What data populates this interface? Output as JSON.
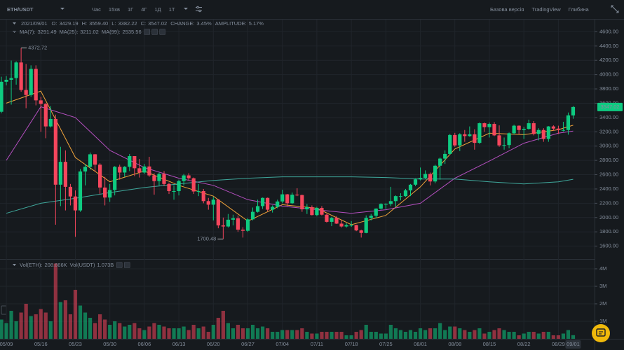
{
  "top_bar": {
    "symbol": "ETH/USDT",
    "intervals": [
      "Час",
      "15хв",
      "1Г",
      "4Г",
      "1Д",
      "1Т"
    ],
    "active_interval": 4,
    "links": [
      "Базова версія",
      "TradingView",
      "Глибина"
    ],
    "active_link": 0
  },
  "chart_data": {
    "type": "candlestick",
    "header": {
      "date": "2021/09/01",
      "items": [
        {
          "label": "O:",
          "value": "3429.19"
        },
        {
          "label": "H:",
          "value": "3559.40"
        },
        {
          "label": "L:",
          "value": "3382.22"
        },
        {
          "label": "C:",
          "value": "3547.02"
        },
        {
          "label": "CHANGE:",
          "value": "3.45%"
        },
        {
          "label": "AMPLITUDE:",
          "value": "5.17%"
        }
      ]
    },
    "categories": [
      null,
      "05/09",
      null,
      null,
      null,
      null,
      null,
      null,
      "05/16",
      null,
      null,
      null,
      null,
      null,
      null,
      "05/23",
      null,
      null,
      null,
      null,
      null,
      null,
      "05/30",
      null,
      null,
      null,
      null,
      null,
      null,
      "06/06",
      null,
      null,
      null,
      null,
      null,
      null,
      "06/13",
      null,
      null,
      null,
      null,
      null,
      null,
      "06/20",
      null,
      null,
      null,
      null,
      null,
      null,
      "06/27",
      null,
      null,
      null,
      null,
      null,
      null,
      "07/04",
      null,
      null,
      null,
      null,
      null,
      null,
      "07/11",
      null,
      null,
      null,
      null,
      null,
      null,
      "07/18",
      null,
      null,
      null,
      null,
      null,
      null,
      "07/25",
      null,
      null,
      null,
      null,
      null,
      null,
      "08/01",
      null,
      null,
      null,
      null,
      null,
      null,
      "08/08",
      null,
      null,
      null,
      null,
      null,
      null,
      "08/15",
      null,
      null,
      null,
      null,
      null,
      null,
      "08/22",
      null,
      null,
      null,
      null,
      null,
      null,
      "08/29",
      null,
      null,
      "09/01"
    ],
    "open": [
      3480,
      3900,
      3928,
      3952,
      4170,
      3785,
      3715,
      4080,
      3640,
      3590,
      3275,
      3380,
      2460,
      2780,
      2430,
      2295,
      2100,
      2645,
      2710,
      2885,
      2740,
      2420,
      2280,
      2385,
      2710,
      2630,
      2710,
      2860,
      2690,
      2630,
      2715,
      2590,
      2510,
      2610,
      2470,
      2370,
      2370,
      2510,
      2590,
      2550,
      2365,
      2370,
      2230,
      2180,
      2250,
      1890,
      1875,
      1970,
      1990,
      1830,
      1815,
      1975,
      2080,
      2160,
      2275,
      2110,
      2150,
      2225,
      2325,
      2200,
      2320,
      2315,
      2115,
      2145,
      2035,
      2135,
      2040,
      1940,
      1995,
      1915,
      1875,
      1895,
      1895,
      1820,
      1785,
      1995,
      2025,
      2125,
      2190,
      2190,
      2230,
      2300,
      2300,
      2380,
      2460,
      2535,
      2555,
      2610,
      2505,
      2725,
      2825,
      2890,
      3155,
      3010,
      3165,
      3140,
      3165,
      3045,
      3320,
      3265,
      3310,
      3150,
      3010,
      3015,
      3180,
      3285,
      3225,
      3240,
      3320,
      3170,
      3225,
      3100,
      3275,
      3245,
      3225,
      3225,
      3429.19
    ],
    "high": [
      3970,
      3980,
      4197,
      4187,
      4372.72,
      4150,
      4130,
      4130,
      3690,
      3600,
      3560,
      3440,
      2990,
      2940,
      2470,
      2380,
      2680,
      2750,
      2910,
      2890,
      2760,
      2570,
      2470,
      2720,
      2740,
      2720,
      2890,
      2860,
      2820,
      2750,
      2850,
      2620,
      2630,
      2650,
      2490,
      2450,
      2530,
      2610,
      2620,
      2560,
      2470,
      2400,
      2275,
      2290,
      2260,
      2000,
      2050,
      2040,
      2030,
      1865,
      1990,
      2140,
      2250,
      2280,
      2280,
      2170,
      2250,
      2390,
      2330,
      2350,
      2410,
      2320,
      2190,
      2170,
      2150,
      2160,
      2050,
      2010,
      2020,
      1960,
      1920,
      1950,
      1900,
      1830,
      2030,
      2050,
      2130,
      2200,
      2200,
      2430,
      2310,
      2340,
      2400,
      2470,
      2550,
      2700,
      2660,
      2630,
      2740,
      2840,
      2940,
      3170,
      3185,
      3180,
      3225,
      3275,
      3235,
      3330,
      3330,
      3330,
      3335,
      3290,
      3120,
      3190,
      3300,
      3290,
      3270,
      3370,
      3350,
      3250,
      3250,
      3280,
      3290,
      3285,
      3340,
      3470,
      3559.4
    ],
    "low": [
      3460,
      3850,
      3580,
      3860,
      3760,
      3530,
      3690,
      3570,
      3200,
      3110,
      3260,
      1900,
      2160,
      2100,
      2170,
      1730,
      2080,
      2450,
      2670,
      2640,
      2330,
      2170,
      2220,
      2310,
      2530,
      2570,
      2650,
      2580,
      2560,
      2610,
      2570,
      2320,
      2450,
      2440,
      2330,
      2250,
      2310,
      2450,
      2520,
      2330,
      2300,
      2200,
      2110,
      1960,
      1850,
      1700.48,
      1860,
      1890,
      1800,
      1720,
      1800,
      1960,
      2070,
      2120,
      2090,
      2070,
      2130,
      2200,
      2160,
      2190,
      2300,
      2080,
      2050,
      2030,
      2020,
      2030,
      1930,
      1880,
      1910,
      1860,
      1860,
      1870,
      1810,
      1720,
      1780,
      1960,
      1990,
      2110,
      2120,
      2160,
      2150,
      2240,
      2290,
      2300,
      2440,
      2520,
      2540,
      2450,
      2480,
      2530,
      2750,
      2880,
      2990,
      2930,
      3060,
      3130,
      2950,
      3030,
      3200,
      3120,
      3140,
      2990,
      2950,
      2970,
      3160,
      3170,
      3100,
      3230,
      3150,
      3080,
      3060,
      3060,
      3215,
      3170,
      3205,
      3160,
      3382.22
    ],
    "close": [
      3900,
      3928,
      3952,
      4170,
      3785,
      3715,
      4080,
      3640,
      3590,
      3275,
      3380,
      2460,
      2780,
      2430,
      2295,
      2100,
      2645,
      2710,
      2885,
      2740,
      2420,
      2280,
      2385,
      2710,
      2630,
      2710,
      2860,
      2690,
      2630,
      2715,
      2590,
      2510,
      2610,
      2470,
      2370,
      2370,
      2510,
      2590,
      2550,
      2365,
      2370,
      2230,
      2180,
      2250,
      1890,
      1875,
      1970,
      1990,
      1830,
      1815,
      1975,
      2080,
      2160,
      2275,
      2110,
      2150,
      2225,
      2325,
      2200,
      2320,
      2315,
      2115,
      2145,
      2035,
      2135,
      2040,
      1940,
      1995,
      1915,
      1875,
      1895,
      1895,
      1820,
      1785,
      1995,
      2025,
      2125,
      2190,
      2190,
      2230,
      2300,
      2300,
      2380,
      2460,
      2535,
      2555,
      2610,
      2505,
      2725,
      2825,
      2890,
      3155,
      3010,
      3165,
      3140,
      3165,
      3045,
      3320,
      3265,
      3310,
      3150,
      3010,
      3015,
      3180,
      3285,
      3225,
      3240,
      3320,
      3170,
      3225,
      3100,
      3275,
      3245,
      3225,
      3225,
      3430,
      3547.02
    ],
    "up_color": "#0ecb81",
    "down_color": "#f6465d",
    "ylim": [
      1420,
      4770
    ],
    "yticks": [
      {
        "value": 1600,
        "label": "1600.00"
      },
      {
        "value": 1800,
        "label": "1800.00"
      },
      {
        "value": 2000,
        "label": "2000.00"
      },
      {
        "value": 2200,
        "label": "2200.00"
      },
      {
        "value": 2400,
        "label": "2400.00"
      },
      {
        "value": 2600,
        "label": "2600.00"
      },
      {
        "value": 2800,
        "label": "2800.00"
      },
      {
        "value": 3000,
        "label": "3000.00"
      },
      {
        "value": 3200,
        "label": "3200.00"
      },
      {
        "value": 3400,
        "label": "3400.00"
      },
      {
        "value": 3600,
        "label": "3600.00"
      },
      {
        "value": 3800,
        "label": "3800.00"
      },
      {
        "value": 4000,
        "label": "4000.00"
      },
      {
        "value": 4200,
        "label": "4200.00"
      },
      {
        "value": 4400,
        "label": "4400.00"
      },
      {
        "value": 4600,
        "label": "4600.00"
      }
    ],
    "grid": true,
    "moving_averages": [
      {
        "name": "MA(7):",
        "color": "#f0a33a",
        "x": [
          "05/09",
          "05/16",
          "05/23",
          "05/30",
          "06/06",
          "06/13",
          "06/20",
          "06/27",
          "07/04",
          "07/11",
          "07/18",
          "07/25",
          "08/01",
          "08/08",
          "08/15",
          "08/22",
          "08/29",
          "09/01"
        ],
        "values": [
          3600,
          3770,
          2840,
          2500,
          2650,
          2450,
          2300,
          1950,
          2180,
          2130,
          1900,
          2030,
          2430,
          2960,
          3180,
          3160,
          3230,
          3291.49
        ]
      },
      {
        "name": "MA(25):",
        "color": "#b54fc0",
        "x": [
          "05/09",
          "05/16",
          "05/23",
          "05/30",
          "06/06",
          "06/13",
          "06/20",
          "06/27",
          "07/04",
          "07/11",
          "07/18",
          "07/25",
          "08/01",
          "08/08",
          "08/15",
          "08/22",
          "08/29",
          "09/01"
        ],
        "values": [
          2800,
          3550,
          3400,
          2940,
          2700,
          2550,
          2450,
          2250,
          2160,
          2110,
          2060,
          2110,
          2200,
          2550,
          2790,
          3040,
          3180,
          3211.02
        ]
      },
      {
        "name": "MA(99):",
        "color": "#3fa89c",
        "x": [
          "05/09",
          "05/16",
          "05/23",
          "05/30",
          "06/06",
          "06/13",
          "06/20",
          "06/27",
          "07/04",
          "07/11",
          "07/18",
          "07/25",
          "08/01",
          "08/08",
          "08/15",
          "08/22",
          "08/29",
          "09/01"
        ],
        "values": [
          2060,
          2200,
          2270,
          2350,
          2420,
          2470,
          2520,
          2550,
          2570,
          2570,
          2570,
          2560,
          2540,
          2540,
          2500,
          2470,
          2500,
          2535.56
        ]
      }
    ],
    "volume": {
      "header": [
        {
          "label": "Vol(ETH):",
          "value": "208.666K"
        },
        {
          "label": "Vol(USDT)",
          "value": "1.073B"
        }
      ],
      "values": [
        1100000,
        900000,
        1600000,
        1000000,
        1500000,
        2000000,
        1300000,
        1400000,
        1700000,
        1500000,
        1000000,
        4300000,
        2100000,
        2200000,
        1400000,
        2800000,
        1900000,
        1500000,
        1200000,
        900000,
        1400000,
        1100000,
        800000,
        1000000,
        900000,
        700000,
        800000,
        900000,
        600000,
        500000,
        700000,
        900000,
        800000,
        700000,
        600000,
        600000,
        600000,
        700000,
        500000,
        800000,
        600000,
        700000,
        400000,
        800000,
        1200000,
        1600000,
        900000,
        600000,
        800000,
        600000,
        600000,
        800000,
        600000,
        700000,
        600000,
        400000,
        400000,
        500000,
        500000,
        500000,
        500000,
        600000,
        400000,
        300000,
        300000,
        400000,
        400000,
        400000,
        400000,
        400000,
        200000,
        200000,
        400000,
        500000,
        800000,
        400000,
        400000,
        300000,
        300000,
        800000,
        600000,
        500000,
        400000,
        500000,
        400000,
        600000,
        500000,
        600000,
        600000,
        900000,
        500000,
        700000,
        700000,
        600000,
        500000,
        400000,
        500000,
        600000,
        300000,
        400000,
        500000,
        600000,
        500000,
        400000,
        400000,
        200000,
        300000,
        400000,
        400000,
        300000,
        400000,
        400000,
        200000,
        200000,
        300000,
        500000,
        208666
      ],
      "ylim": [
        0,
        4480000
      ],
      "yticks": [
        {
          "value": 1000000,
          "label": "1M"
        },
        {
          "value": 2000000,
          "label": "2M"
        },
        {
          "value": 3000000,
          "label": "3M"
        },
        {
          "value": 4000000,
          "label": "4M"
        }
      ]
    }
  }
}
